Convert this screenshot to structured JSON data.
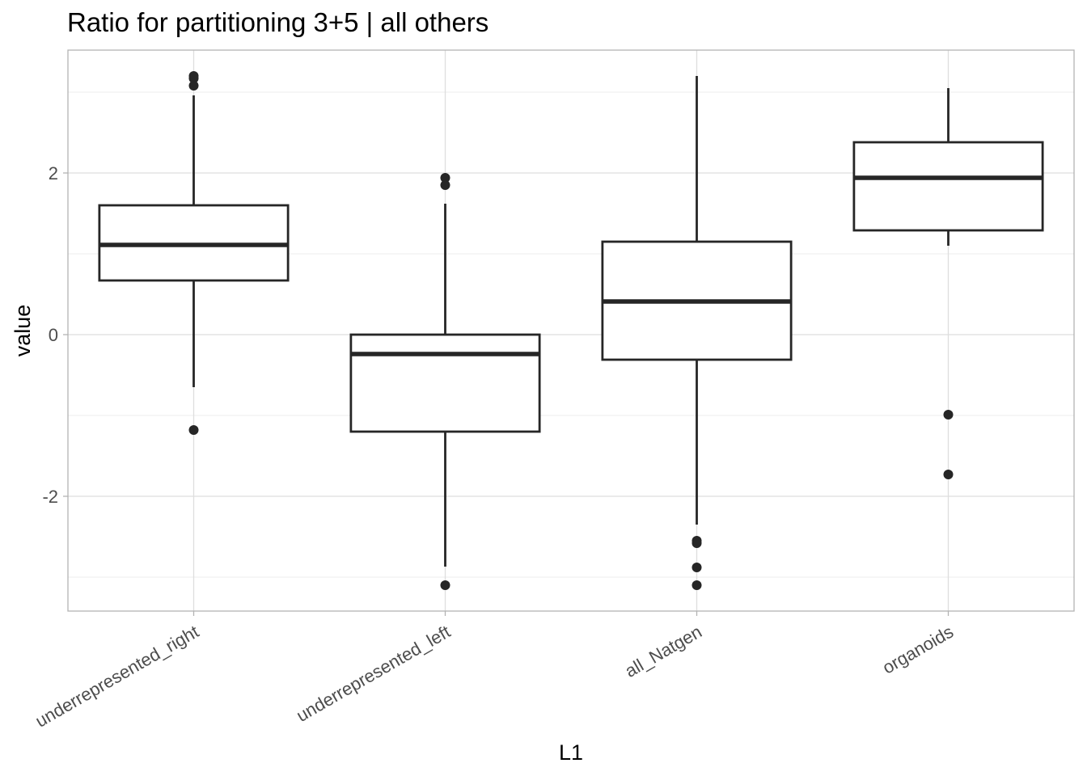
{
  "chart_data": {
    "type": "box",
    "title": "Ratio for partitioning 3+5 | all others",
    "xlabel": "L1",
    "ylabel": "value",
    "ylim": [
      -3.42,
      3.52
    ],
    "yticks": [
      -2,
      0,
      2
    ],
    "y_tick_labels": [
      "-2",
      "0",
      "2"
    ],
    "grid": true,
    "categories": [
      "underrepresented_right",
      "underrepresented_left",
      "all_Natgen",
      "organoids"
    ],
    "boxes": [
      {
        "category": "underrepresented_right",
        "whisker_low": -0.65,
        "q1": 0.67,
        "median": 1.11,
        "q3": 1.6,
        "whisker_high": 2.96,
        "outliers": [
          3.2,
          3.17,
          3.08,
          -1.18
        ]
      },
      {
        "category": "underrepresented_left",
        "whisker_low": -2.87,
        "q1": -1.2,
        "median": -0.24,
        "q3": 0.0,
        "whisker_high": 1.62,
        "outliers": [
          1.94,
          1.85,
          -3.1
        ]
      },
      {
        "category": "all_Natgen",
        "whisker_low": -2.35,
        "q1": -0.31,
        "median": 0.41,
        "q3": 1.15,
        "whisker_high": 3.2,
        "outliers": [
          -2.55,
          -2.58,
          -2.88,
          -3.1
        ]
      },
      {
        "category": "organoids",
        "whisker_low": 1.1,
        "q1": 1.29,
        "median": 1.94,
        "q3": 2.38,
        "whisker_high": 3.05,
        "outliers": [
          -0.99,
          -1.73
        ]
      }
    ],
    "colors": {
      "box_stroke": "#262626",
      "grid_major": "#dedede",
      "grid_minor": "#ececec",
      "panel_border": "#b3b3b3",
      "text": "#000000",
      "tick_text": "#4d4d4d"
    }
  }
}
